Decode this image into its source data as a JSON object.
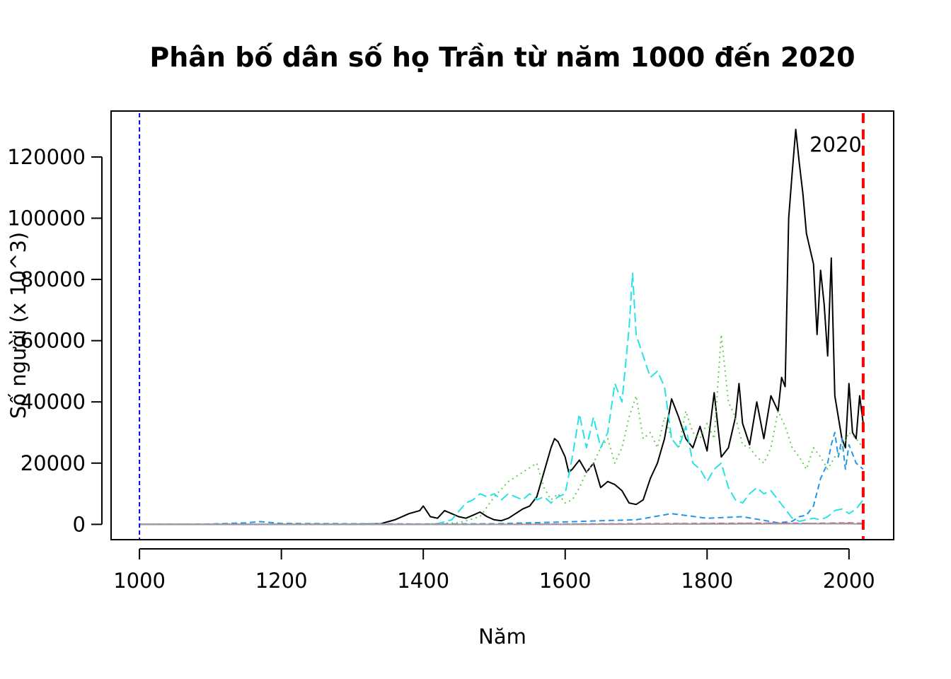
{
  "chart_data": {
    "type": "line",
    "title": "Phân bố dân số họ Trần từ năm 1000 đến 2020",
    "xlabel": "Năm",
    "ylabel": "Số người (x 10^3)",
    "xlim": [
      960,
      2063
    ],
    "ylim": [
      -5000,
      135000
    ],
    "x_ticks": [
      1000,
      1200,
      1400,
      1600,
      1800,
      2000
    ],
    "y_ticks": [
      0,
      20000,
      40000,
      60000,
      80000,
      100000,
      120000
    ],
    "grid": false,
    "annotations": [
      {
        "text": "2020",
        "x": 2020,
        "y": 125000
      }
    ],
    "reference_lines": [
      {
        "x": 1000,
        "color": "#0000ff",
        "style": "dashed"
      },
      {
        "x": 2020,
        "color": "#ff0000",
        "style": "dashed-thick"
      }
    ],
    "series": [
      {
        "color": "#000000",
        "style": "solid",
        "points": [
          [
            1000,
            0
          ],
          [
            1300,
            0
          ],
          [
            1340,
            200
          ],
          [
            1360,
            1500
          ],
          [
            1380,
            3500
          ],
          [
            1395,
            4500
          ],
          [
            1400,
            6000
          ],
          [
            1410,
            2500
          ],
          [
            1420,
            2000
          ],
          [
            1430,
            4500
          ],
          [
            1440,
            3500
          ],
          [
            1450,
            2500
          ],
          [
            1460,
            2000
          ],
          [
            1470,
            3000
          ],
          [
            1480,
            4000
          ],
          [
            1490,
            2500
          ],
          [
            1500,
            1500
          ],
          [
            1510,
            1200
          ],
          [
            1520,
            2000
          ],
          [
            1530,
            3500
          ],
          [
            1540,
            5000
          ],
          [
            1550,
            6000
          ],
          [
            1560,
            9000
          ],
          [
            1570,
            17000
          ],
          [
            1580,
            25000
          ],
          [
            1585,
            28000
          ],
          [
            1590,
            27000
          ],
          [
            1600,
            22000
          ],
          [
            1605,
            17000
          ],
          [
            1610,
            18000
          ],
          [
            1620,
            21000
          ],
          [
            1630,
            17000
          ],
          [
            1640,
            20000
          ],
          [
            1650,
            12000
          ],
          [
            1660,
            14000
          ],
          [
            1670,
            13000
          ],
          [
            1680,
            11000
          ],
          [
            1690,
            7000
          ],
          [
            1700,
            6500
          ],
          [
            1710,
            8000
          ],
          [
            1720,
            15000
          ],
          [
            1730,
            20000
          ],
          [
            1740,
            28000
          ],
          [
            1750,
            41000
          ],
          [
            1760,
            35000
          ],
          [
            1770,
            28000
          ],
          [
            1780,
            25000
          ],
          [
            1790,
            32000
          ],
          [
            1800,
            24000
          ],
          [
            1810,
            43000
          ],
          [
            1820,
            22000
          ],
          [
            1830,
            25000
          ],
          [
            1840,
            35000
          ],
          [
            1845,
            46000
          ],
          [
            1850,
            33000
          ],
          [
            1860,
            26000
          ],
          [
            1870,
            40000
          ],
          [
            1880,
            28000
          ],
          [
            1890,
            42000
          ],
          [
            1900,
            37000
          ],
          [
            1905,
            48000
          ],
          [
            1910,
            45000
          ],
          [
            1915,
            100000
          ],
          [
            1920,
            115000
          ],
          [
            1925,
            129000
          ],
          [
            1930,
            118000
          ],
          [
            1935,
            108000
          ],
          [
            1940,
            95000
          ],
          [
            1945,
            90000
          ],
          [
            1950,
            85000
          ],
          [
            1955,
            62000
          ],
          [
            1960,
            83000
          ],
          [
            1965,
            72000
          ],
          [
            1970,
            55000
          ],
          [
            1975,
            87000
          ],
          [
            1980,
            42000
          ],
          [
            1985,
            35000
          ],
          [
            1990,
            28000
          ],
          [
            1995,
            25000
          ],
          [
            2000,
            46000
          ],
          [
            2005,
            30000
          ],
          [
            2010,
            28000
          ],
          [
            2015,
            42000
          ],
          [
            2020,
            33000
          ]
        ]
      },
      {
        "color": "#61d04f",
        "style": "dotted",
        "points": [
          [
            1000,
            0
          ],
          [
            1300,
            0
          ],
          [
            1400,
            100
          ],
          [
            1450,
            500
          ],
          [
            1480,
            2500
          ],
          [
            1500,
            9000
          ],
          [
            1520,
            14000
          ],
          [
            1540,
            17000
          ],
          [
            1560,
            20000
          ],
          [
            1570,
            12000
          ],
          [
            1580,
            8000
          ],
          [
            1590,
            10000
          ],
          [
            1600,
            7000
          ],
          [
            1610,
            8000
          ],
          [
            1620,
            12000
          ],
          [
            1630,
            17000
          ],
          [
            1640,
            20000
          ],
          [
            1650,
            25000
          ],
          [
            1660,
            28000
          ],
          [
            1670,
            20000
          ],
          [
            1680,
            25000
          ],
          [
            1690,
            35000
          ],
          [
            1700,
            42000
          ],
          [
            1710,
            28000
          ],
          [
            1720,
            30000
          ],
          [
            1730,
            25000
          ],
          [
            1740,
            35000
          ],
          [
            1750,
            28000
          ],
          [
            1760,
            25000
          ],
          [
            1770,
            37000
          ],
          [
            1780,
            30000
          ],
          [
            1790,
            28000
          ],
          [
            1800,
            33000
          ],
          [
            1810,
            28000
          ],
          [
            1820,
            62000
          ],
          [
            1830,
            40000
          ],
          [
            1840,
            35000
          ],
          [
            1850,
            26000
          ],
          [
            1860,
            25000
          ],
          [
            1870,
            22000
          ],
          [
            1880,
            20000
          ],
          [
            1890,
            25000
          ],
          [
            1900,
            37000
          ],
          [
            1910,
            32000
          ],
          [
            1920,
            25000
          ],
          [
            1930,
            22000
          ],
          [
            1940,
            18000
          ],
          [
            1950,
            25000
          ],
          [
            1960,
            22000
          ],
          [
            1970,
            18000
          ],
          [
            1980,
            22000
          ],
          [
            1990,
            25000
          ],
          [
            2000,
            30000
          ],
          [
            2010,
            28000
          ],
          [
            2020,
            25000
          ]
        ]
      },
      {
        "color": "#28e2e5",
        "style": "longdash",
        "points": [
          [
            1000,
            0
          ],
          [
            1300,
            0
          ],
          [
            1400,
            0
          ],
          [
            1420,
            200
          ],
          [
            1440,
            1500
          ],
          [
            1460,
            7000
          ],
          [
            1470,
            8000
          ],
          [
            1480,
            10000
          ],
          [
            1490,
            9000
          ],
          [
            1500,
            10000
          ],
          [
            1510,
            8000
          ],
          [
            1520,
            10000
          ],
          [
            1530,
            9000
          ],
          [
            1540,
            8000
          ],
          [
            1550,
            10000
          ],
          [
            1560,
            8000
          ],
          [
            1570,
            9000
          ],
          [
            1580,
            7000
          ],
          [
            1590,
            9000
          ],
          [
            1600,
            10000
          ],
          [
            1610,
            22000
          ],
          [
            1620,
            36000
          ],
          [
            1630,
            25000
          ],
          [
            1640,
            35000
          ],
          [
            1650,
            25000
          ],
          [
            1660,
            30000
          ],
          [
            1670,
            46000
          ],
          [
            1680,
            40000
          ],
          [
            1690,
            64000
          ],
          [
            1695,
            82000
          ],
          [
            1700,
            62000
          ],
          [
            1710,
            55000
          ],
          [
            1720,
            48000
          ],
          [
            1730,
            50000
          ],
          [
            1740,
            45000
          ],
          [
            1750,
            28000
          ],
          [
            1760,
            25000
          ],
          [
            1770,
            32000
          ],
          [
            1780,
            20000
          ],
          [
            1790,
            18000
          ],
          [
            1800,
            14000
          ],
          [
            1810,
            18000
          ],
          [
            1820,
            20000
          ],
          [
            1830,
            12000
          ],
          [
            1840,
            8000
          ],
          [
            1850,
            7000
          ],
          [
            1860,
            10000
          ],
          [
            1870,
            12000
          ],
          [
            1880,
            10000
          ],
          [
            1890,
            11000
          ],
          [
            1900,
            8000
          ],
          [
            1910,
            5000
          ],
          [
            1920,
            2000
          ],
          [
            1930,
            1000
          ],
          [
            1940,
            1500
          ],
          [
            1950,
            2000
          ],
          [
            1960,
            1500
          ],
          [
            1970,
            2500
          ],
          [
            1980,
            4500
          ],
          [
            1990,
            5000
          ],
          [
            2000,
            3500
          ],
          [
            2010,
            5000
          ],
          [
            2020,
            8000
          ]
        ]
      },
      {
        "color": "#2297e6",
        "style": "dashed",
        "points": [
          [
            1000,
            0
          ],
          [
            1100,
            100
          ],
          [
            1150,
            500
          ],
          [
            1170,
            900
          ],
          [
            1200,
            300
          ],
          [
            1300,
            200
          ],
          [
            1400,
            100
          ],
          [
            1500,
            200
          ],
          [
            1600,
            800
          ],
          [
            1650,
            1200
          ],
          [
            1700,
            1500
          ],
          [
            1750,
            3500
          ],
          [
            1800,
            2000
          ],
          [
            1850,
            2500
          ],
          [
            1900,
            500
          ],
          [
            1920,
            1000
          ],
          [
            1930,
            2500
          ],
          [
            1940,
            3000
          ],
          [
            1950,
            6000
          ],
          [
            1960,
            15000
          ],
          [
            1970,
            20000
          ],
          [
            1975,
            26000
          ],
          [
            1980,
            30000
          ],
          [
            1985,
            22000
          ],
          [
            1990,
            28000
          ],
          [
            1995,
            18000
          ],
          [
            2000,
            26000
          ],
          [
            2010,
            20000
          ],
          [
            2020,
            18000
          ]
        ]
      },
      {
        "color": "#df536b",
        "style": "dashed",
        "points": [
          [
            1000,
            0
          ],
          [
            1500,
            0
          ],
          [
            1600,
            100
          ],
          [
            1700,
            200
          ],
          [
            1800,
            300
          ],
          [
            1900,
            400
          ],
          [
            1950,
            300
          ],
          [
            2000,
            500
          ],
          [
            2020,
            300
          ]
        ]
      },
      {
        "color": "#cd0bbc",
        "style": "dotdash",
        "points": [
          [
            1000,
            0
          ],
          [
            1500,
            0
          ],
          [
            1700,
            100
          ],
          [
            1800,
            200
          ],
          [
            1900,
            300
          ],
          [
            2000,
            300
          ],
          [
            2020,
            200
          ]
        ]
      },
      {
        "color": "#9e9e9e",
        "style": "solid",
        "points": [
          [
            1000,
            0
          ],
          [
            1600,
            0
          ],
          [
            1800,
            100
          ],
          [
            1900,
            200
          ],
          [
            2000,
            200
          ],
          [
            2020,
            100
          ]
        ]
      }
    ]
  }
}
